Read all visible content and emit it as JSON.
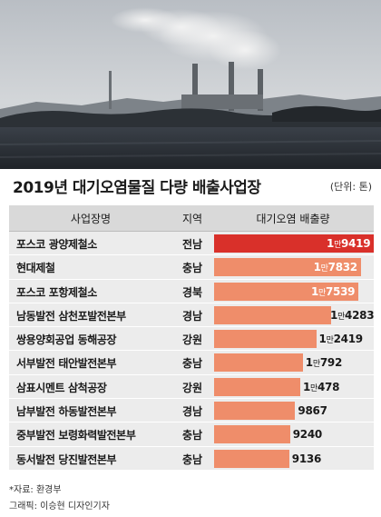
{
  "title": "2019년 대기오염물질 다량 배출사업장",
  "unit": "(단위: 톤)",
  "headers": {
    "name": "사업장명",
    "region": "지역",
    "emission": "대기오염 배출량"
  },
  "source": "*자료: 환경부",
  "credit": "그래픽: 이승현 디자인기자",
  "colors": {
    "top_bar": "#d9302a",
    "bar": "#ef8d6a",
    "row_bg": "#ececec",
    "header_bg": "#d9d9d9"
  },
  "chart_data": {
    "type": "bar",
    "orientation": "horizontal",
    "categories": [
      "포스코 광양제철소",
      "현대제철",
      "포스코 포항제철소",
      "남동발전 삼천포발전본부",
      "쌍용양회공업 동해공장",
      "서부발전 태안발전본부",
      "삼표시멘트 삼척공장",
      "남부발전 하동발전본부",
      "중부발전 보령화력발전본부",
      "동서발전 당진발전본부"
    ],
    "regions": [
      "전남",
      "충남",
      "경북",
      "경남",
      "강원",
      "충남",
      "강원",
      "경남",
      "충남",
      "충남"
    ],
    "values": [
      19419,
      17832,
      17539,
      14283,
      12419,
      10792,
      10478,
      9867,
      9240,
      9136
    ],
    "labels": [
      {
        "man": "1",
        "rest": "9419"
      },
      {
        "man": "1",
        "rest": "7832"
      },
      {
        "man": "1",
        "rest": "7539"
      },
      {
        "man": "1",
        "rest": "4283"
      },
      {
        "man": "1",
        "rest": "2419"
      },
      {
        "man": "1",
        "rest": "792"
      },
      {
        "man": "1",
        "rest": "478"
      },
      {
        "man": "",
        "rest": "9867"
      },
      {
        "man": "",
        "rest": "9240"
      },
      {
        "man": "",
        "rest": "9136"
      }
    ],
    "man_unit": "만",
    "xlim": [
      0,
      19419
    ]
  }
}
